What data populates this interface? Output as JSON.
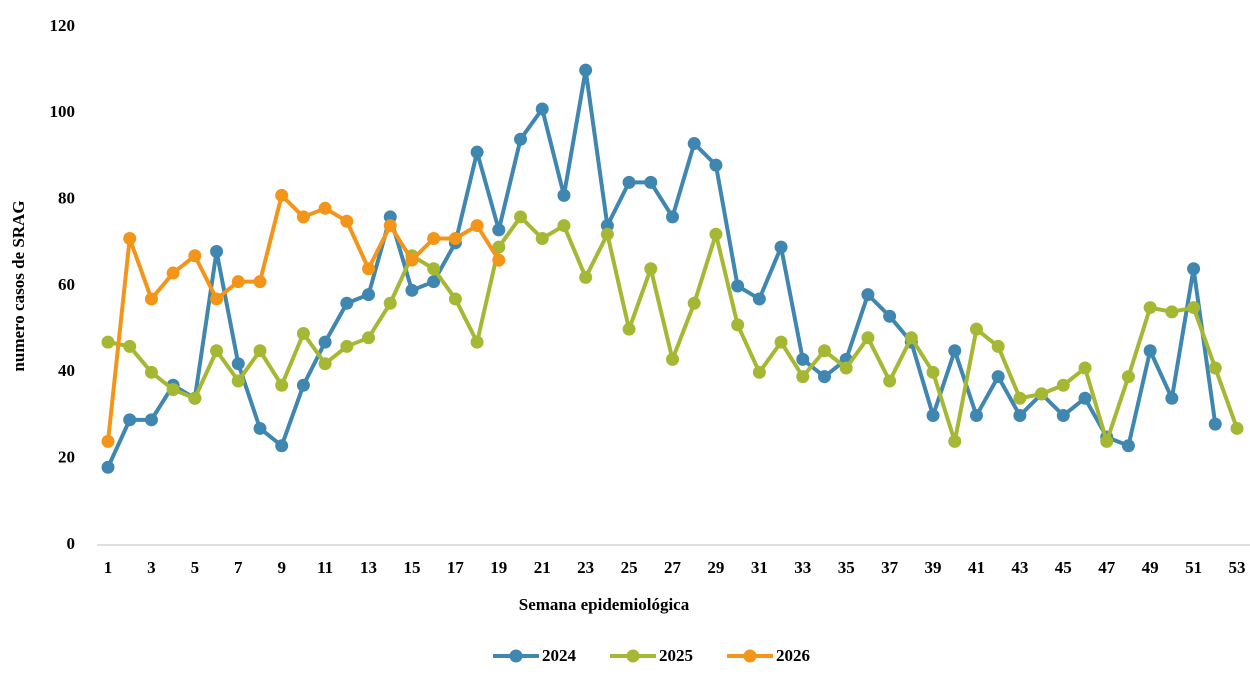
{
  "chart_data": {
    "type": "line",
    "x_label": "Semana epidemiológica",
    "y_label": "numero casos de SRAG",
    "categories": [
      "1",
      null,
      "3",
      null,
      "5",
      null,
      "7",
      null,
      "9",
      null,
      "11",
      null,
      "13",
      null,
      "15",
      null,
      "17",
      null,
      "19",
      null,
      "21",
      null,
      "23",
      null,
      "25",
      null,
      "27",
      null,
      "29",
      null,
      "31",
      null,
      "33",
      null,
      "35",
      null,
      "37",
      null,
      "39",
      null,
      "41",
      null,
      "43",
      null,
      "45",
      null,
      "47",
      null,
      "49",
      null,
      "51",
      null,
      "53"
    ],
    "series": [
      {
        "name": "2024",
        "color": "#3f87b0",
        "values": [
          18,
          29,
          29,
          37,
          34,
          68,
          42,
          27,
          23,
          37,
          47,
          56,
          58,
          76,
          59,
          61,
          70,
          91,
          73,
          94,
          101,
          81,
          110,
          74,
          84,
          84,
          76,
          93,
          88,
          60,
          57,
          69,
          43,
          39,
          43,
          58,
          53,
          47,
          30,
          45,
          30,
          39,
          30,
          35,
          30,
          34,
          25,
          23,
          45,
          34,
          64,
          28,
          null
        ]
      },
      {
        "name": "2025",
        "color": "#a6b833",
        "values": [
          47,
          46,
          40,
          36,
          34,
          45,
          38,
          45,
          37,
          49,
          42,
          46,
          48,
          56,
          67,
          64,
          57,
          47,
          69,
          76,
          71,
          74,
          62,
          72,
          50,
          64,
          43,
          56,
          72,
          51,
          40,
          47,
          39,
          45,
          41,
          48,
          38,
          48,
          40,
          24,
          50,
          46,
          34,
          35,
          37,
          41,
          24,
          39,
          55,
          54,
          55,
          41,
          27
        ]
      },
      {
        "name": "2026",
        "color": "#f39519",
        "values": [
          24,
          71,
          57,
          63,
          67,
          57,
          61,
          61,
          81,
          76,
          78,
          75,
          64,
          74,
          66,
          71,
          71,
          74,
          66,
          null,
          null,
          null,
          null,
          null,
          null,
          null,
          null,
          null,
          null,
          null,
          null,
          null,
          null,
          null,
          null,
          null,
          null,
          null,
          null,
          null,
          null,
          null,
          null,
          null,
          null,
          null,
          null,
          null,
          null,
          null,
          null,
          null,
          null
        ]
      }
    ],
    "ylim": [
      0,
      120
    ],
    "yticks": [
      0,
      20,
      40,
      60,
      80,
      100,
      120
    ],
    "grid": false,
    "legend": "bottom"
  }
}
